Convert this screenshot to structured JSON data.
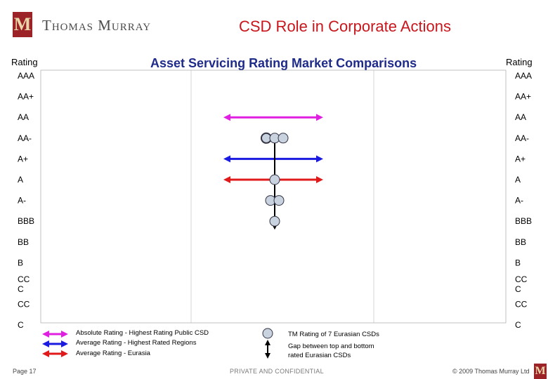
{
  "header": {
    "logo_text": "Thomas Murray",
    "slide_title": "CSD Role in Corporate Actions"
  },
  "chart": {
    "title": "Asset Servicing Rating Market Comparisons",
    "left_axis_heading": "Rating",
    "right_axis_heading": "Rating"
  },
  "chart_data": {
    "type": "range",
    "title": "Asset Servicing Rating Market Comparisons",
    "ylabel": "Rating",
    "rating_scale": [
      "AAA",
      "AA+",
      "AA",
      "AA-",
      "A+",
      "A",
      "A-",
      "BBB",
      "BB",
      "B",
      "CC C",
      "CC",
      "C"
    ],
    "series": [
      {
        "name": "Absolute Rating - Highest Rating Public CSD",
        "rating": "AA",
        "color": "#e020e0"
      },
      {
        "name": "Average Rating - Highest Rated Regions",
        "rating": "A+",
        "color": "#1a1ae0"
      },
      {
        "name": "Average Rating - Eurasia",
        "rating": "A",
        "color": "#e01a1a"
      }
    ],
    "eurasian_csd_ratings": [
      "AA-",
      "AA-",
      "AA-",
      "A",
      "A-",
      "A-",
      "BBB"
    ],
    "gap_range": [
      "AA-",
      "BBB"
    ]
  },
  "legend": {
    "line1": "Absolute Rating - Highest Rating Public CSD",
    "line2": "Average Rating - Highest Rated Regions",
    "line3": "Average Rating - Eurasia",
    "circle_label": "TM Rating of 7 Eurasian CSDs",
    "gap_label_1": "Gap between top and bottom",
    "gap_label_2": "rated Eurasian CSDs"
  },
  "footer": {
    "page": "Page 17",
    "confidential": "PRIVATE AND CONFIDENTIAL",
    "copyright": "© 2009 Thomas Murray Ltd"
  },
  "colors": {
    "brand_red": "#c8161d",
    "title_blue": "#1f2b8a",
    "magenta": "#e020e0",
    "blue": "#1a1ae0",
    "red": "#e01a1a",
    "circle_fill": "#c9d3df"
  }
}
